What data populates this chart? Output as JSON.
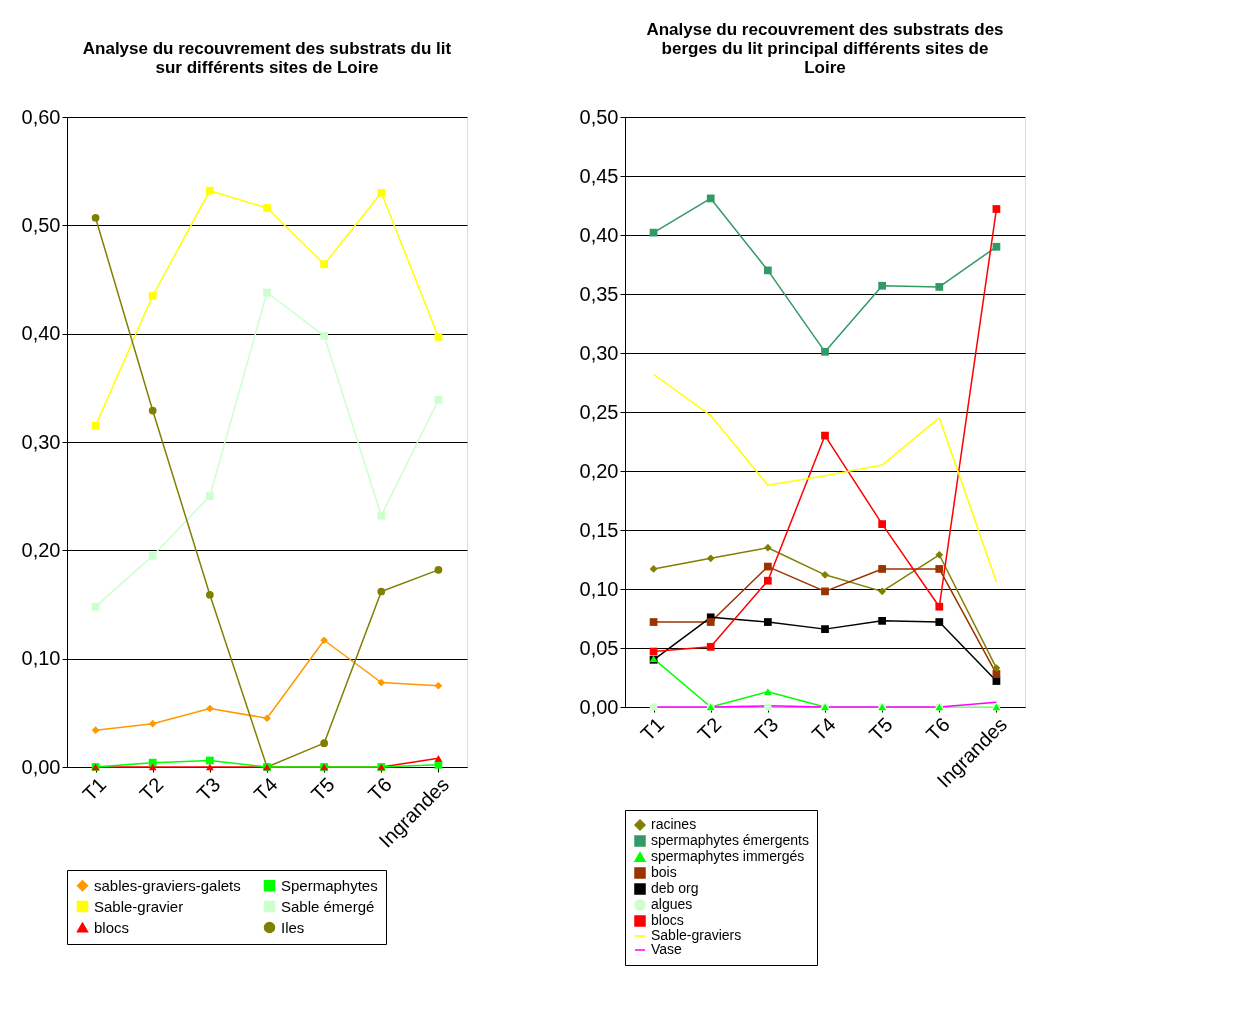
{
  "chart_data": [
    {
      "type": "line",
      "title": "Analyse du recouvrement des substrats du lit sur différents sites de Loire",
      "categories": [
        "T1",
        "T2",
        "T3",
        "T4",
        "T5",
        "T6",
        "Ingrandes"
      ],
      "ylim": [
        0,
        0.6
      ],
      "yticks": [
        {
          "value": 0,
          "label": "0,00"
        },
        {
          "value": 0.1,
          "label": "0,10"
        },
        {
          "value": 0.2,
          "label": "0,20"
        },
        {
          "value": 0.3,
          "label": "0,30"
        },
        {
          "value": 0.4,
          "label": "0,40"
        },
        {
          "value": 0.5,
          "label": "0,50"
        },
        {
          "value": 0.6,
          "label": "0,60"
        }
      ],
      "grid": "y",
      "legend": "bottom",
      "series": [
        {
          "name": "sables-graviers-galets",
          "color": "#ff9900",
          "marker": "diamond",
          "values": [
            0.034,
            0.04,
            0.054,
            0.045,
            0.117,
            0.078,
            0.075
          ]
        },
        {
          "name": "Sable-gravier",
          "color": "#ffff00",
          "marker": "square",
          "values": [
            0.315,
            0.435,
            0.532,
            0.516,
            0.464,
            0.53,
            0.397
          ]
        },
        {
          "name": "blocs",
          "color": "#ff0000",
          "marker": "triangle",
          "values": [
            0,
            0,
            0,
            0,
            0,
            0,
            0.008
          ]
        },
        {
          "name": "Spermaphytes",
          "color": "#00ff00",
          "marker": "square",
          "values": [
            0,
            0.004,
            0.006,
            0,
            0,
            0,
            0.002
          ]
        },
        {
          "name": "Sable émergé",
          "color": "#ccffcc",
          "marker": "square",
          "values": [
            0.148,
            0.195,
            0.25,
            0.438,
            0.398,
            0.232,
            0.339
          ]
        },
        {
          "name": "Iles",
          "color": "#808000",
          "marker": "circle",
          "values": [
            0.507,
            0.329,
            0.159,
            0.0,
            0.022,
            0.162,
            0.182
          ]
        }
      ]
    },
    {
      "type": "line",
      "title": "Analyse du recouvrement des substrats des berges du lit principal différents sites de Loire",
      "categories": [
        "T1",
        "T2",
        "T3",
        "T4",
        "T5",
        "T6",
        "Ingrandes"
      ],
      "ylim": [
        0,
        0.5
      ],
      "yticks": [
        {
          "value": 0,
          "label": "0,00"
        },
        {
          "value": 0.05,
          "label": "0,05"
        },
        {
          "value": 0.1,
          "label": "0,10"
        },
        {
          "value": 0.15,
          "label": "0,15"
        },
        {
          "value": 0.2,
          "label": "0,20"
        },
        {
          "value": 0.25,
          "label": "0,25"
        },
        {
          "value": 0.3,
          "label": "0,30"
        },
        {
          "value": 0.35,
          "label": "0,35"
        },
        {
          "value": 0.4,
          "label": "0,40"
        },
        {
          "value": 0.45,
          "label": "0,45"
        },
        {
          "value": 0.5,
          "label": "0,50"
        }
      ],
      "grid": "y",
      "legend": "bottom",
      "series": [
        {
          "name": "racines",
          "color": "#808000",
          "marker": "diamond",
          "values": [
            0.117,
            0.126,
            0.135,
            0.112,
            0.098,
            0.129,
            0.033
          ]
        },
        {
          "name": "spermaphytes émergents",
          "color": "#339966",
          "marker": "square",
          "values": [
            0.402,
            0.431,
            0.37,
            0.301,
            0.357,
            0.356,
            0.39
          ]
        },
        {
          "name": "spermaphytes immergés",
          "color": "#00ff00",
          "marker": "triangle",
          "values": [
            0.041,
            0,
            0.013,
            0,
            0,
            0,
            0
          ]
        },
        {
          "name": "bois",
          "color": "#993300",
          "marker": "square",
          "values": [
            0.072,
            0.072,
            0.119,
            0.098,
            0.117,
            0.117,
            0.028
          ]
        },
        {
          "name": "deb org",
          "color": "#000000",
          "marker": "square",
          "values": [
            0.04,
            0.076,
            0.072,
            0.066,
            0.073,
            0.072,
            0.022
          ]
        },
        {
          "name": "algues",
          "color": "#ccffcc",
          "marker": "circle",
          "values": [
            0,
            0,
            0,
            0,
            0,
            0,
            0
          ]
        },
        {
          "name": "blocs",
          "color": "#ff0000",
          "marker": "square",
          "values": [
            0.047,
            0.051,
            0.107,
            0.23,
            0.155,
            0.085,
            0.422
          ]
        },
        {
          "name": "Sable-graviers",
          "color": "#ffff00",
          "marker": "none",
          "values": [
            0.282,
            0.247,
            0.188,
            0.196,
            0.205,
            0.245,
            0.106
          ]
        },
        {
          "name": "Vase",
          "color": "#ff00ff",
          "marker": "none",
          "values": [
            0,
            0,
            0.001,
            0,
            0,
            0,
            0.004
          ]
        }
      ]
    }
  ]
}
